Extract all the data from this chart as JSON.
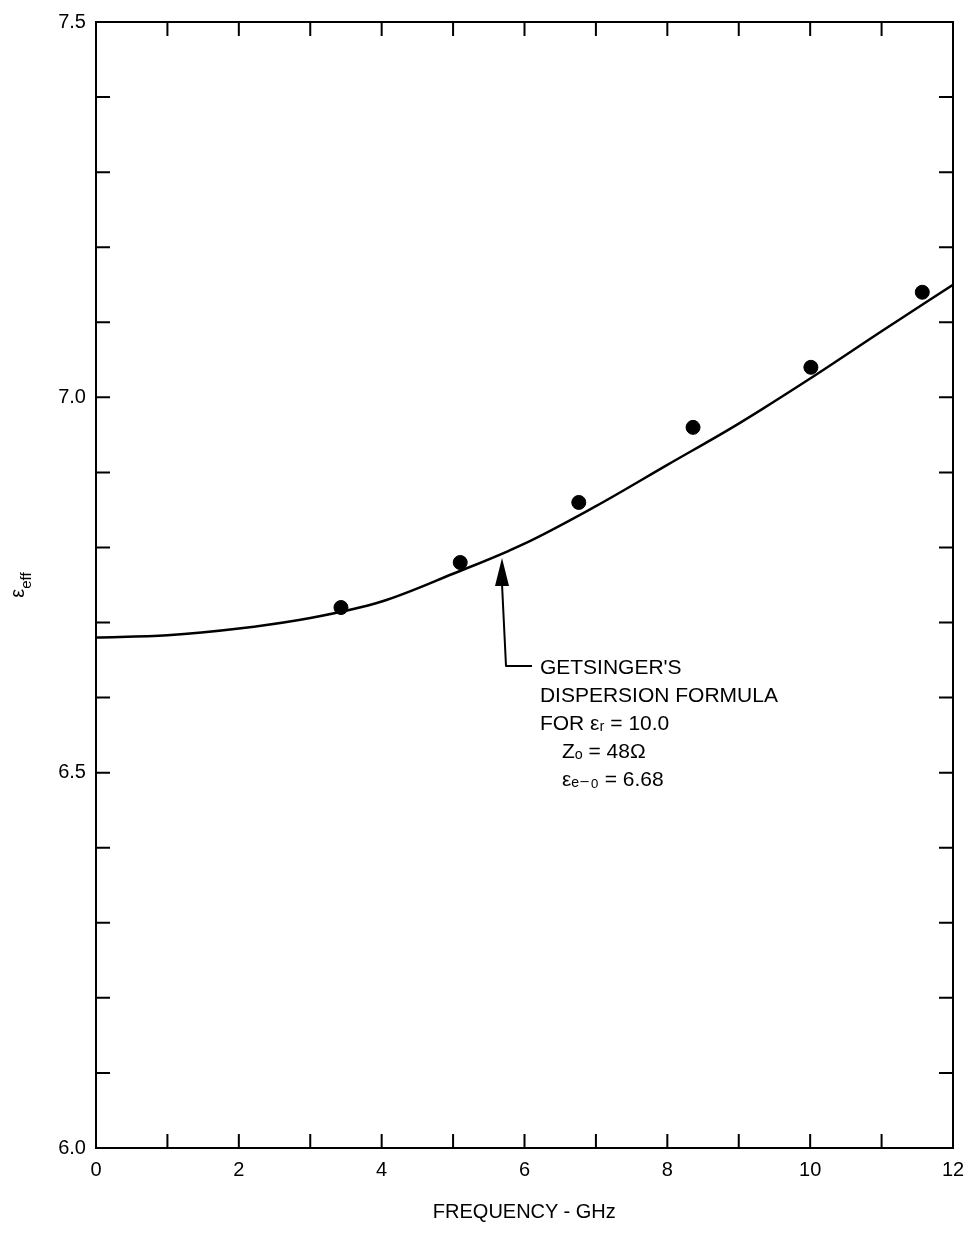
{
  "chart_data": {
    "type": "scatter",
    "xlabel": "FREQUENCY - GHz",
    "ylabel": "ε$_{eff}$",
    "xlim": [
      0,
      12
    ],
    "ylim": [
      6.0,
      7.5
    ],
    "xticks": [
      0,
      {
        "value": 1,
        "label": null
      },
      2,
      {
        "value": 3,
        "label": null
      },
      4,
      {
        "value": 5,
        "label": null
      },
      6,
      {
        "value": 7,
        "label": null
      },
      8,
      {
        "value": 9,
        "label": null
      },
      10,
      {
        "value": 11,
        "label": null
      },
      12
    ],
    "yticks": [
      {
        "value": 6.0,
        "label": "6.0"
      },
      {
        "value": 6.1,
        "label": null
      },
      {
        "value": 6.2,
        "label": null
      },
      {
        "value": 6.3,
        "label": null
      },
      {
        "value": 6.4,
        "label": null
      },
      {
        "value": 6.5,
        "label": "6.5"
      },
      {
        "value": 6.6,
        "label": null
      },
      {
        "value": 6.7,
        "label": null
      },
      {
        "value": 6.8,
        "label": null
      },
      {
        "value": 6.9,
        "label": null
      },
      {
        "value": 7.0,
        "label": "7.0"
      },
      {
        "value": 7.1,
        "label": null
      },
      {
        "value": 7.2,
        "label": null
      },
      {
        "value": 7.3,
        "label": null
      },
      {
        "value": 7.4,
        "label": null
      },
      {
        "value": 7.5,
        "label": "7.5"
      }
    ],
    "grid": false,
    "legend": false,
    "marker": "circle",
    "series": [
      {
        "color": "#000000",
        "x": [
          3.43,
          5.1,
          6.76,
          8.36,
          10.01,
          11.57
        ],
        "values": [
          6.72,
          6.78,
          6.86,
          6.96,
          7.04,
          7.14
        ]
      },
      {
        "type": "line",
        "color": "#000000",
        "marker": "none",
        "line_style": "solid",
        "x": [
          0,
          1,
          2,
          3,
          4,
          5,
          6,
          7,
          8,
          9,
          10,
          11,
          12
        ],
        "values": [
          6.68,
          6.683,
          6.692,
          6.706,
          6.728,
          6.765,
          6.805,
          6.855,
          6.91,
          6.965,
          7.025,
          7.088,
          7.15
        ]
      }
    ],
    "annotations": [
      "GETSINGER'S",
      "DISPERSION FORMULA",
      "FOR εᵣ = 10.0",
      "Zₒ = 48Ω",
      "εₑ₋₀ = 6.68"
    ]
  }
}
